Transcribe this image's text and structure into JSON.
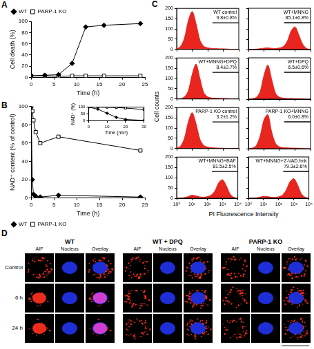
{
  "panel_labels": [
    "A",
    "B",
    "C",
    "D"
  ],
  "chart_data": [
    {
      "type": "line",
      "x_label": "Time (h)",
      "y_label": "Cell death (%)",
      "xlim": [
        0,
        25
      ],
      "xticks": [
        0,
        5,
        10,
        15,
        20,
        25
      ],
      "ylim": [
        0,
        100
      ],
      "yticks": [
        0,
        20,
        40,
        60,
        80,
        100
      ],
      "legend": "upper left",
      "x": [
        0,
        3,
        6,
        9,
        12,
        16,
        24
      ],
      "series": [
        {
          "name": "WT",
          "color": "#000000",
          "marker": "diamond",
          "values": [
            3,
            4,
            5,
            25,
            90,
            93,
            96
          ]
        },
        {
          "name": "PARP-1 KO",
          "color": "#000000",
          "marker": "open square",
          "values": [
            3,
            3,
            2,
            3,
            3,
            3,
            3
          ]
        }
      ]
    },
    {
      "type": "line",
      "x_label": "Time (h)",
      "y_label": "NAD⁺ content (% of control)",
      "xlim": [
        0,
        25
      ],
      "xticks": [
        0,
        5,
        10,
        15,
        20,
        25
      ],
      "ylim": [
        0,
        100
      ],
      "yticks": [
        0,
        20,
        40,
        60,
        80,
        100
      ],
      "legend": "lower left",
      "x": [
        0,
        0.25,
        0.5,
        1,
        2,
        6,
        24
      ],
      "series": [
        {
          "name": "WT",
          "color": "#000000",
          "marker": "diamond",
          "values": [
            100,
            20,
            4,
            2,
            1,
            3,
            1
          ]
        },
        {
          "name": "PARP-1 KO",
          "color": "#000000",
          "marker": "open square",
          "values": [
            100,
            95,
            85,
            72,
            60,
            67,
            52
          ]
        }
      ]
    },
    {
      "type": "line",
      "x_label": "Time (min)",
      "y_label": "NAD⁺ (%)",
      "xlim": [
        0,
        30
      ],
      "xticks": [
        0,
        10,
        20,
        30
      ],
      "ylim": [
        0,
        100
      ],
      "yticks": [
        0,
        50,
        100
      ],
      "x": [
        0,
        5,
        10,
        15,
        20,
        30
      ],
      "series": [
        {
          "name": "WT",
          "color": "#000000",
          "marker": "diamond",
          "values": [
            100,
            85,
            55,
            25,
            10,
            3
          ]
        },
        {
          "name": "PARP-1 KO",
          "color": "#000000",
          "marker": "open square",
          "values": [
            100,
            100,
            99,
            97,
            93,
            82
          ]
        }
      ]
    },
    {
      "type": "area",
      "title": "WT control",
      "annotation": "9.8±0.8%",
      "log": "x",
      "tick_labels": "y",
      "color": "#e8251f",
      "xlim": [
        1,
        10000
      ],
      "xticks": [
        {
          "value": 1,
          "label": "10⁰"
        },
        {
          "value": 10,
          "label": "10¹"
        },
        {
          "value": 100,
          "label": "10²"
        },
        {
          "value": 1000,
          "label": "10³"
        },
        {
          "value": 10000,
          "label": "10⁴"
        }
      ],
      "ylim": [
        0,
        200
      ],
      "yticks": [
        0,
        50,
        100,
        150,
        200
      ],
      "gate": {
        "x": [
          200,
          10000
        ],
        "y": 130
      },
      "x": [
        1,
        1.78,
        3.16,
        5.62,
        10,
        17.8,
        31.6,
        56.2,
        100,
        178,
        316,
        562,
        1000,
        1778,
        3162,
        5623,
        10000
      ],
      "values": [
        2,
        15,
        55,
        140,
        185,
        125,
        45,
        15,
        8,
        5,
        4,
        3,
        3,
        2,
        1,
        0,
        0
      ]
    },
    {
      "type": "area",
      "title": "WT+MNNG",
      "annotation": "85.1±6.8%",
      "log": "x",
      "tick_labels": false,
      "color": "#e8251f",
      "xlim": [
        1,
        10000
      ],
      "xticks": [
        {
          "value": 1,
          "label": "10⁰"
        },
        {
          "value": 10,
          "label": "10¹"
        },
        {
          "value": 100,
          "label": "10²"
        },
        {
          "value": 1000,
          "label": "10³"
        },
        {
          "value": 10000,
          "label": "10⁴"
        }
      ],
      "ylim": [
        0,
        200
      ],
      "yticks": [
        0,
        50,
        100,
        150,
        200
      ],
      "gate": {
        "x": [
          200,
          10000
        ],
        "y": 130
      },
      "x": [
        1,
        1.78,
        3.16,
        5.62,
        10,
        17.8,
        31.6,
        56.2,
        100,
        178,
        316,
        562,
        1000,
        1778,
        3162,
        5623,
        10000
      ],
      "values": [
        0,
        1,
        2,
        4,
        7,
        8,
        6,
        5,
        8,
        15,
        40,
        90,
        110,
        70,
        25,
        5,
        0
      ]
    },
    {
      "type": "area",
      "title": "WT+MNNG+DPQ",
      "annotation": "8.4±0.7%",
      "log": "x",
      "tick_labels": "y",
      "color": "#e8251f",
      "xlim": [
        1,
        10000
      ],
      "xticks": [
        {
          "value": 1,
          "label": "10⁰"
        },
        {
          "value": 10,
          "label": "10¹"
        },
        {
          "value": 100,
          "label": "10²"
        },
        {
          "value": 1000,
          "label": "10³"
        },
        {
          "value": 10000,
          "label": "10⁴"
        }
      ],
      "ylim": [
        0,
        200
      ],
      "yticks": [
        0,
        50,
        100,
        150,
        200
      ],
      "gate": {
        "x": [
          200,
          10000
        ],
        "y": 130
      },
      "x": [
        1,
        1.78,
        3.16,
        5.62,
        10,
        17.8,
        31.6,
        56.2,
        100,
        178,
        316,
        562,
        1000,
        1778,
        3162,
        5623,
        10000
      ],
      "values": [
        0,
        2,
        10,
        40,
        120,
        170,
        100,
        30,
        10,
        5,
        4,
        3,
        3,
        2,
        1,
        0,
        0
      ]
    },
    {
      "type": "area",
      "title": "WT+DPQ",
      "annotation": "6.5±0.6%",
      "log": "x",
      "tick_labels": false,
      "color": "#e8251f",
      "xlim": [
        1,
        10000
      ],
      "xticks": [
        {
          "value": 1,
          "label": "10⁰"
        },
        {
          "value": 10,
          "label": "10¹"
        },
        {
          "value": 100,
          "label": "10²"
        },
        {
          "value": 1000,
          "label": "10³"
        },
        {
          "value": 10000,
          "label": "10⁴"
        }
      ],
      "ylim": [
        0,
        200
      ],
      "yticks": [
        0,
        50,
        100,
        150,
        200
      ],
      "gate": {
        "x": [
          200,
          10000
        ],
        "y": 130
      },
      "x": [
        1,
        1.78,
        3.16,
        5.62,
        10,
        17.8,
        31.6,
        56.2,
        100,
        178,
        316,
        562,
        1000,
        1778,
        3162,
        5623,
        10000
      ],
      "values": [
        0,
        2,
        8,
        35,
        115,
        165,
        95,
        28,
        9,
        5,
        3,
        3,
        2,
        2,
        1,
        0,
        0
      ]
    },
    {
      "type": "area",
      "title": "PARP-1 KO control",
      "annotation": "3.2±1.2%",
      "log": "x",
      "tick_labels": "y",
      "color": "#e8251f",
      "xlim": [
        1,
        10000
      ],
      "xticks": [
        {
          "value": 1,
          "label": "10⁰"
        },
        {
          "value": 10,
          "label": "10¹"
        },
        {
          "value": 100,
          "label": "10²"
        },
        {
          "value": 1000,
          "label": "10³"
        },
        {
          "value": 10000,
          "label": "10⁴"
        }
      ],
      "ylim": [
        0,
        200
      ],
      "yticks": [
        0,
        50,
        100,
        150,
        200
      ],
      "gate": {
        "x": [
          200,
          10000
        ],
        "y": 130
      },
      "x": [
        1,
        1.78,
        3.16,
        5.62,
        10,
        17.8,
        31.6,
        56.2,
        100,
        178,
        316,
        562,
        1000,
        1778,
        3162,
        5623,
        10000
      ],
      "values": [
        2,
        12,
        50,
        130,
        175,
        120,
        45,
        15,
        7,
        4,
        3,
        2,
        2,
        1,
        1,
        0,
        0
      ]
    },
    {
      "type": "area",
      "title": "PARP-1 KO+MNNG",
      "annotation": "6.0±0.8%",
      "log": "x",
      "tick_labels": false,
      "color": "#e8251f",
      "xlim": [
        1,
        10000
      ],
      "xticks": [
        {
          "value": 1,
          "label": "10⁰"
        },
        {
          "value": 10,
          "label": "10¹"
        },
        {
          "value": 100,
          "label": "10²"
        },
        {
          "value": 1000,
          "label": "10³"
        },
        {
          "value": 10000,
          "label": "10⁴"
        }
      ],
      "ylim": [
        0,
        200
      ],
      "yticks": [
        0,
        50,
        100,
        150,
        200
      ],
      "gate": {
        "x": [
          200,
          10000
        ],
        "y": 130
      },
      "x": [
        1,
        1.78,
        3.16,
        5.62,
        10,
        17.8,
        31.6,
        56.2,
        100,
        178,
        316,
        562,
        1000,
        1778,
        3162,
        5623,
        10000
      ],
      "values": [
        0,
        3,
        15,
        60,
        140,
        165,
        80,
        25,
        9,
        5,
        4,
        3,
        3,
        2,
        1,
        0,
        0
      ]
    },
    {
      "type": "area",
      "title": "WT+MNNG+BAF",
      "annotation": "81.5±2.5%",
      "log": "x",
      "color": "#e8251f",
      "xlim": [
        1,
        10000
      ],
      "xticks": [
        {
          "value": 1,
          "label": "10⁰"
        },
        {
          "value": 10,
          "label": "10¹"
        },
        {
          "value": 100,
          "label": "10²"
        },
        {
          "value": 1000,
          "label": "10³"
        },
        {
          "value": 10000,
          "label": "10⁴"
        }
      ],
      "ylim": [
        0,
        200
      ],
      "yticks": [
        0,
        50,
        100,
        150,
        200
      ],
      "gate": {
        "x": [
          200,
          10000
        ],
        "y": 130
      },
      "x": [
        1,
        1.78,
        3.16,
        5.62,
        10,
        17.8,
        31.6,
        56.2,
        100,
        178,
        316,
        562,
        1000,
        1778,
        3162,
        5623,
        10000
      ],
      "values": [
        0,
        1,
        3,
        8,
        15,
        12,
        7,
        5,
        8,
        15,
        35,
        75,
        90,
        60,
        20,
        4,
        0
      ]
    },
    {
      "type": "area",
      "title": "WT+MNNG+Z-VAD.fmk",
      "annotation": "79.3±2.6%",
      "log": "x",
      "tick_labels": "x",
      "color": "#e8251f",
      "xlim": [
        1,
        10000
      ],
      "xticks": [
        {
          "value": 1,
          "label": "10⁰"
        },
        {
          "value": 10,
          "label": "10¹"
        },
        {
          "value": 100,
          "label": "10²"
        },
        {
          "value": 1000,
          "label": "10³"
        },
        {
          "value": 10000,
          "label": "10⁴"
        }
      ],
      "ylim": [
        0,
        200
      ],
      "yticks": [
        0,
        50,
        100,
        150,
        200
      ],
      "gate": {
        "x": [
          200,
          10000
        ],
        "y": 130
      },
      "x": [
        1,
        1.78,
        3.16,
        5.62,
        10,
        17.8,
        31.6,
        56.2,
        100,
        178,
        316,
        562,
        1000,
        1778,
        3162,
        5623,
        10000
      ],
      "values": [
        0,
        1,
        2,
        5,
        9,
        8,
        5,
        4,
        7,
        15,
        40,
        80,
        95,
        65,
        22,
        5,
        0
      ]
    }
  ],
  "panel_c_axes": {
    "y_label": "Cell counts",
    "x_label": "PI Fluorescence Intensity"
  },
  "image_panel": {
    "row_labels": [
      "Control",
      "6 h",
      "24 h"
    ],
    "column_labels": [
      "AIF",
      "Nucleus",
      "Overlay"
    ],
    "groups": [
      {
        "title": "WT",
        "nuclear_aif": [
          false,
          true,
          true
        ]
      },
      {
        "title": "WT + DPQ",
        "nuclear_aif": [
          false,
          false,
          false
        ]
      },
      {
        "title": "PARP-1 KO",
        "nuclear_aif": [
          false,
          false,
          false
        ]
      }
    ]
  }
}
